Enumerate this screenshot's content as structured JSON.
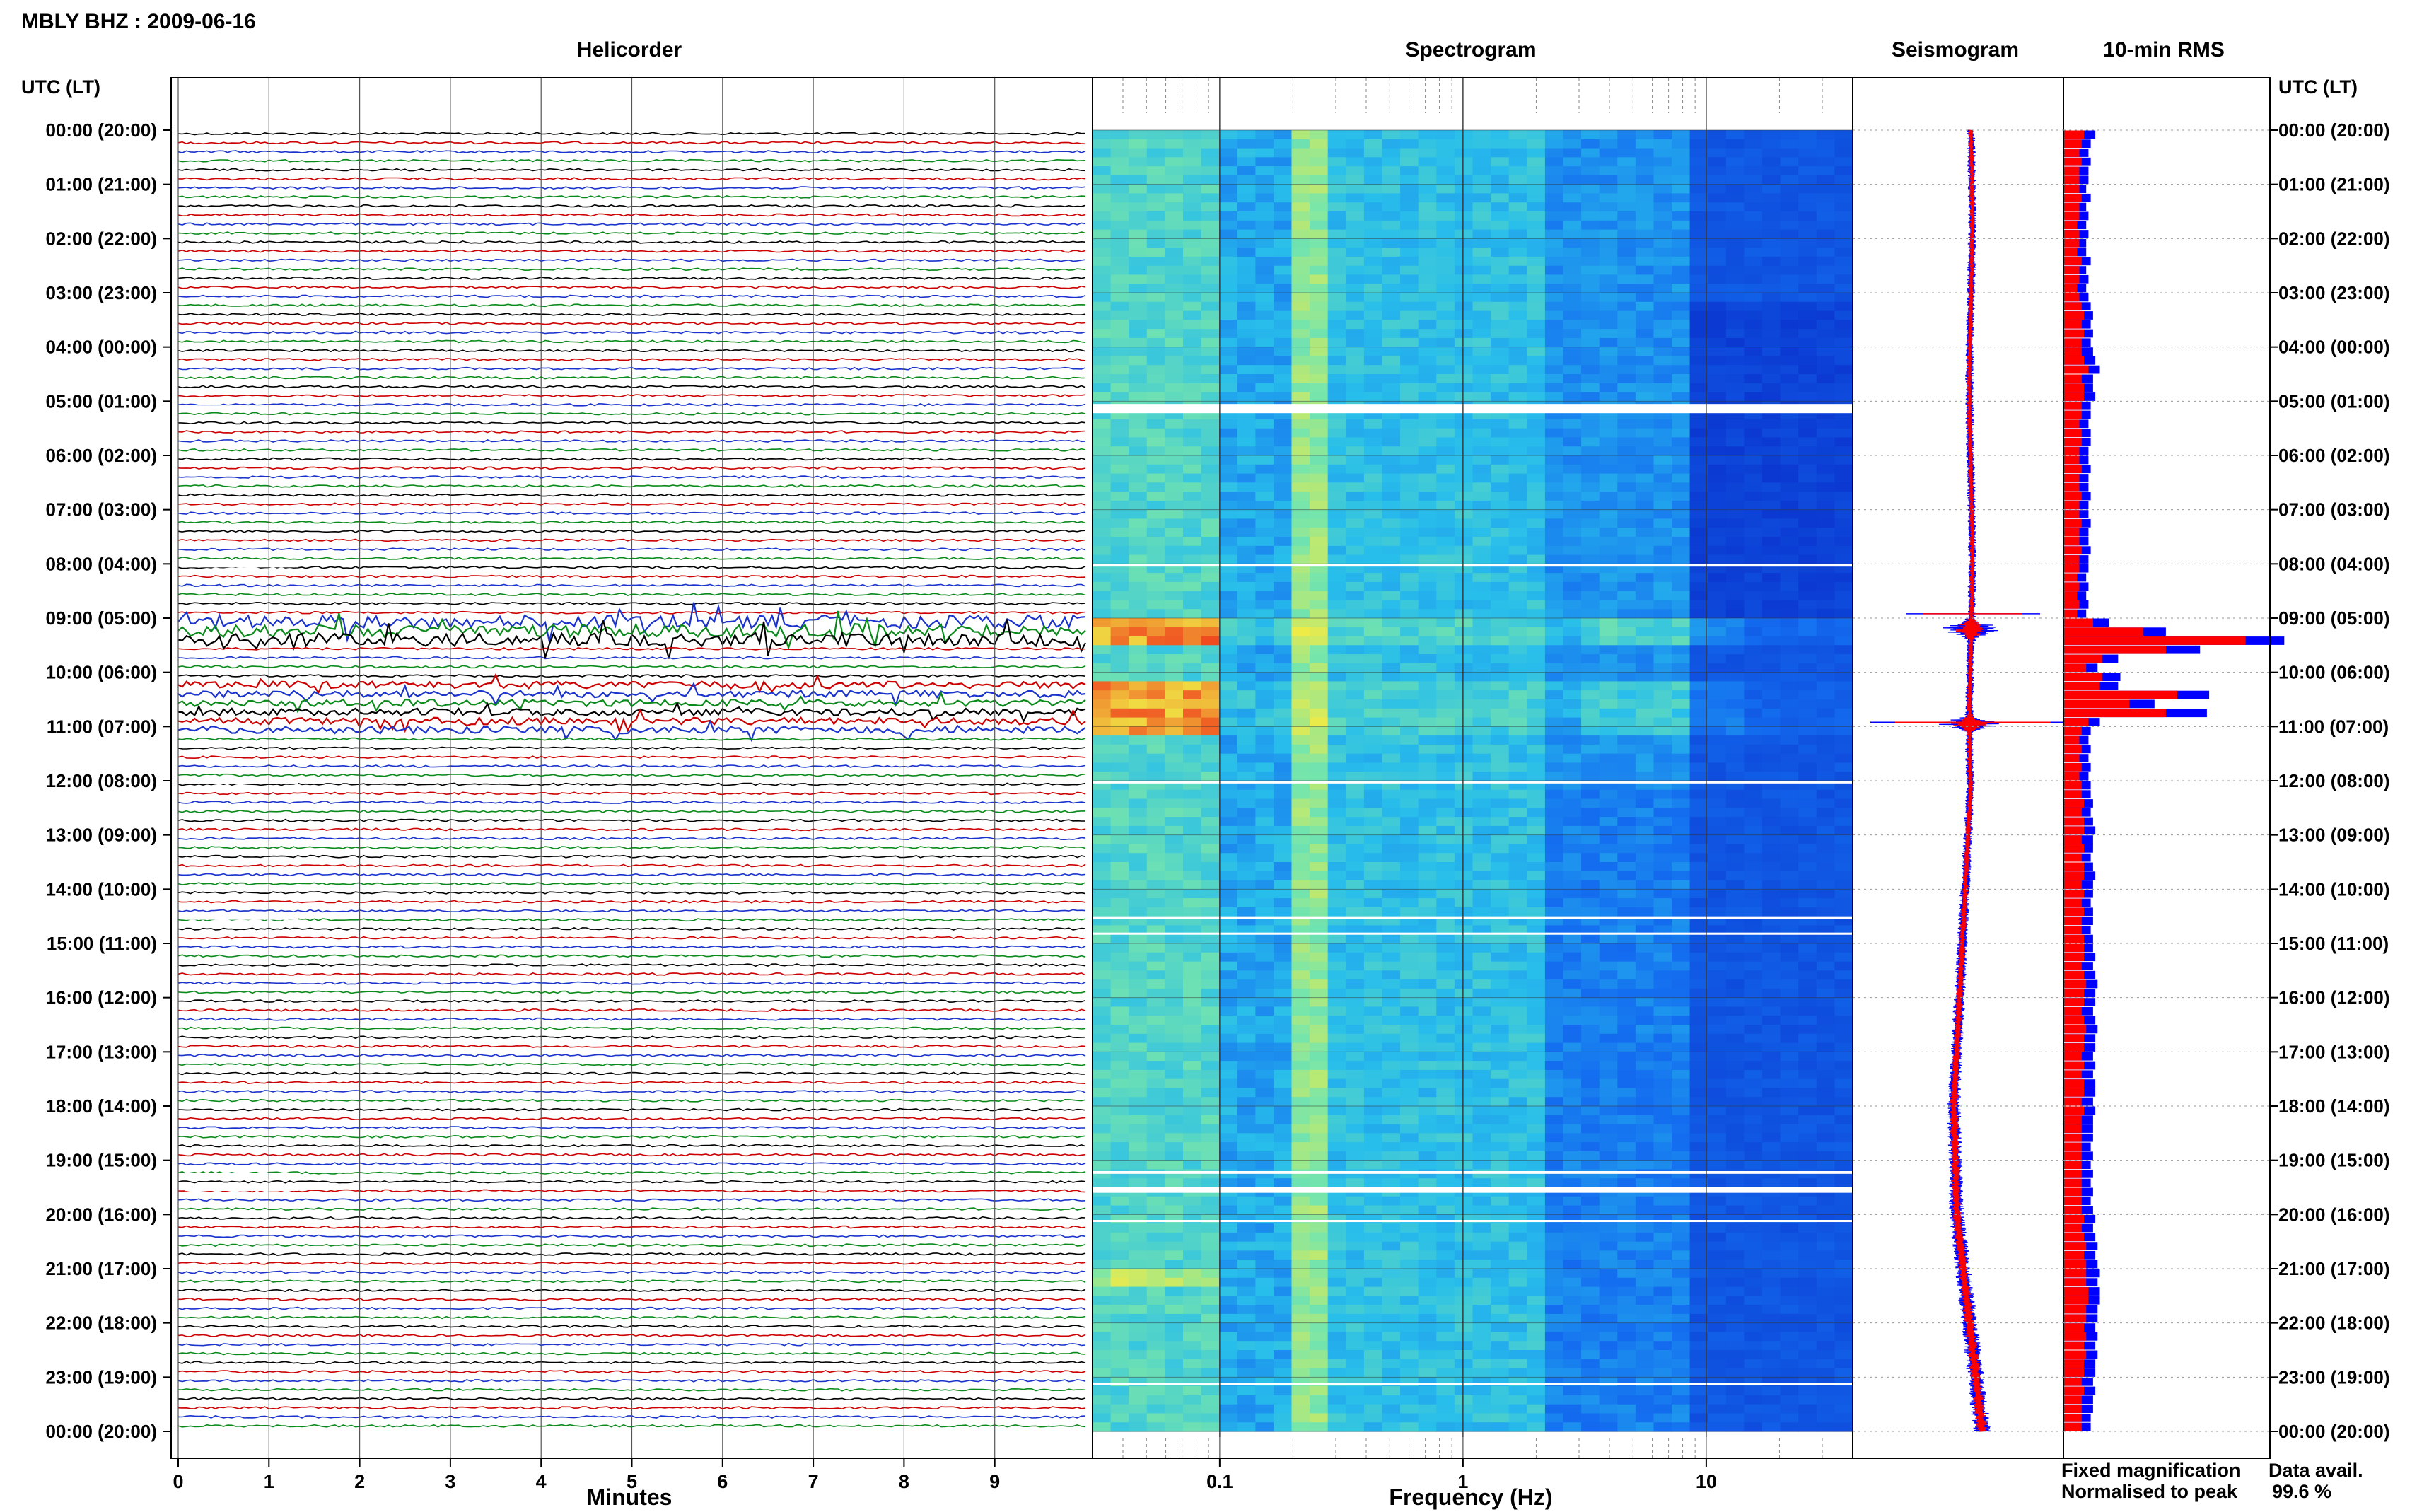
{
  "page": {
    "title": "MBLY BHZ : 2009-06-16",
    "panel_titles": {
      "helicorder": "Helicorder",
      "spectrogram": "Spectrogram",
      "seismogram": "Seismogram",
      "rms": "10-min RMS"
    },
    "axis_header_left": "UTC (LT)",
    "axis_header_right": "UTC (LT)",
    "xlabel_helicorder": "Minutes",
    "xlabel_spectrogram": "Frequency (Hz)",
    "legend": {
      "fixed": "Fixed magnification",
      "normalised": "Normalised to peak"
    },
    "data_avail_label": "Data avail.",
    "data_avail_value": "99.6 %"
  },
  "colors": {
    "trace_cycle": [
      "#000000",
      "#cc0000",
      "#1a33cc",
      "#0a8a1a"
    ],
    "fixed": "#0000ff",
    "normalised": "#ff0000",
    "grid": "#555555"
  },
  "chart_data": [
    {
      "type": "line",
      "name": "helicorder",
      "xlabel": "Minutes",
      "xticks": [
        "0",
        "1",
        "2",
        "3",
        "4",
        "5",
        "6",
        "7",
        "8",
        "9"
      ],
      "xlim": [
        0,
        10
      ],
      "time_ticks": [
        "00:00 (20:00)",
        "01:00 (21:00)",
        "02:00 (22:00)",
        "03:00 (23:00)",
        "04:00 (00:00)",
        "05:00 (01:00)",
        "06:00 (02:00)",
        "07:00 (03:00)",
        "08:00 (04:00)",
        "09:00 (05:00)",
        "10:00 (06:00)",
        "11:00 (07:00)",
        "12:00 (08:00)",
        "13:00 (09:00)",
        "14:00 (10:00)",
        "15:00 (11:00)",
        "16:00 (12:00)",
        "17:00 (13:00)",
        "18:00 (14:00)",
        "19:00 (15:00)",
        "20:00 (16:00)",
        "21:00 (17:00)",
        "22:00 (18:00)",
        "23:00 (19:00)",
        "00:00 (20:00)"
      ],
      "lines_per_hour": 6,
      "minutes_per_line": 10,
      "event_windows_utc": [
        "09:00-09:30",
        "10:00-11:00"
      ]
    },
    {
      "type": "heatmap",
      "name": "spectrogram",
      "xlabel": "Frequency (Hz)",
      "x_scale": "log",
      "xlim": [
        0.03,
        40
      ],
      "xticks": [
        "0.1",
        "1",
        "10"
      ],
      "gaps_utc": [
        "05:00-05:20",
        "08:00",
        "12:00",
        "14:30",
        "19:10",
        "19:30",
        "20:10",
        "23:00"
      ]
    },
    {
      "type": "line",
      "name": "seismogram",
      "series": [
        {
          "name": "Fixed magnification",
          "color": "#0000ff"
        },
        {
          "name": "Normalised to peak",
          "color": "#ff0000"
        }
      ],
      "event_times_utc": [
        "09:10",
        "11:00"
      ]
    },
    {
      "type": "bar",
      "name": "10-min RMS",
      "bins_per_hour": 6,
      "series": [
        {
          "name": "Fixed magnification",
          "color": "#0000ff",
          "values": [
            0.14,
            0.12,
            0.11,
            0.12,
            0.11,
            0.11,
            0.1,
            0.12,
            0.1,
            0.11,
            0.1,
            0.11,
            0.1,
            0.1,
            0.12,
            0.1,
            0.11,
            0.1,
            0.11,
            0.12,
            0.13,
            0.12,
            0.13,
            0.12,
            0.13,
            0.14,
            0.16,
            0.13,
            0.13,
            0.14,
            0.12,
            0.12,
            0.11,
            0.12,
            0.12,
            0.11,
            0.11,
            0.12,
            0.11,
            0.11,
            0.12,
            0.11,
            0.11,
            0.12,
            0.11,
            0.11,
            0.12,
            0.11,
            0.11,
            0.1,
            0.11,
            0.1,
            0.11,
            0.1,
            0.2,
            0.45,
            0.97,
            0.6,
            0.24,
            0.15,
            0.25,
            0.24,
            0.64,
            0.4,
            0.63,
            0.16,
            0.12,
            0.11,
            0.12,
            0.11,
            0.12,
            0.11,
            0.12,
            0.12,
            0.13,
            0.12,
            0.13,
            0.14,
            0.13,
            0.13,
            0.12,
            0.13,
            0.14,
            0.13,
            0.13,
            0.12,
            0.13,
            0.13,
            0.12,
            0.13,
            0.13,
            0.14,
            0.13,
            0.14,
            0.15,
            0.14,
            0.14,
            0.13,
            0.14,
            0.15,
            0.14,
            0.14,
            0.13,
            0.14,
            0.13,
            0.14,
            0.14,
            0.13,
            0.14,
            0.13,
            0.13,
            0.13,
            0.12,
            0.13,
            0.12,
            0.13,
            0.12,
            0.13,
            0.12,
            0.13,
            0.14,
            0.13,
            0.14,
            0.15,
            0.14,
            0.15,
            0.16,
            0.15,
            0.16,
            0.16,
            0.15,
            0.15,
            0.14,
            0.15,
            0.14,
            0.15,
            0.14,
            0.14,
            0.13,
            0.14,
            0.13,
            0.13,
            0.12,
            0.12
          ]
        },
        {
          "name": "Normalised to peak",
          "color": "#ff0000",
          "values": [
            0.09,
            0.08,
            0.07,
            0.08,
            0.07,
            0.07,
            0.07,
            0.08,
            0.07,
            0.07,
            0.06,
            0.07,
            0.07,
            0.06,
            0.08,
            0.07,
            0.07,
            0.06,
            0.07,
            0.08,
            0.09,
            0.08,
            0.09,
            0.08,
            0.08,
            0.09,
            0.11,
            0.08,
            0.09,
            0.09,
            0.08,
            0.08,
            0.07,
            0.08,
            0.08,
            0.07,
            0.07,
            0.08,
            0.07,
            0.07,
            0.08,
            0.07,
            0.07,
            0.08,
            0.07,
            0.07,
            0.08,
            0.07,
            0.07,
            0.06,
            0.07,
            0.06,
            0.07,
            0.06,
            0.13,
            0.35,
            0.8,
            0.45,
            0.17,
            0.1,
            0.17,
            0.16,
            0.5,
            0.29,
            0.45,
            0.11,
            0.08,
            0.07,
            0.08,
            0.07,
            0.08,
            0.07,
            0.08,
            0.08,
            0.09,
            0.08,
            0.09,
            0.09,
            0.08,
            0.09,
            0.08,
            0.09,
            0.09,
            0.08,
            0.09,
            0.08,
            0.09,
            0.08,
            0.08,
            0.09,
            0.09,
            0.09,
            0.08,
            0.09,
            0.1,
            0.09,
            0.09,
            0.08,
            0.09,
            0.1,
            0.09,
            0.09,
            0.08,
            0.09,
            0.08,
            0.09,
            0.09,
            0.08,
            0.09,
            0.08,
            0.08,
            0.08,
            0.08,
            0.08,
            0.08,
            0.08,
            0.08,
            0.08,
            0.08,
            0.08,
            0.09,
            0.08,
            0.09,
            0.1,
            0.09,
            0.1,
            0.1,
            0.1,
            0.11,
            0.11,
            0.1,
            0.1,
            0.09,
            0.1,
            0.09,
            0.1,
            0.09,
            0.09,
            0.08,
            0.09,
            0.08,
            0.08,
            0.08,
            0.08
          ]
        }
      ]
    }
  ]
}
